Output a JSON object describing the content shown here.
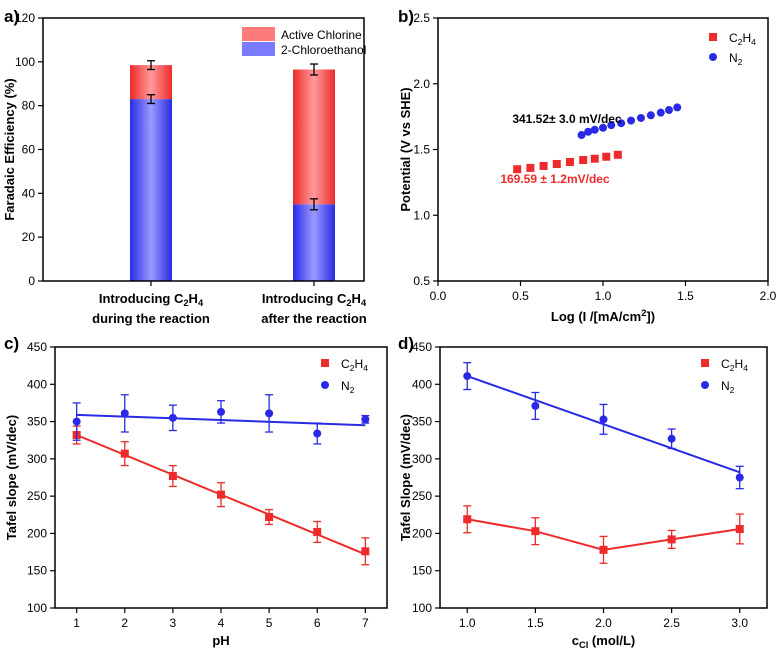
{
  "colors": {
    "red": "#ee2a2a",
    "blue": "#2a2ae6"
  },
  "chart_data": [
    {
      "panel": "a)",
      "type": "bar",
      "stacked": true,
      "ylabel": "Faradaic Efficiency (%)",
      "ylim": [
        0,
        120
      ],
      "yticks": [
        0,
        20,
        40,
        60,
        80,
        100,
        120
      ],
      "categories": [
        {
          "line1": "Introducing C",
          "sub": "2",
          "mid": "H",
          "sub2": "4",
          "line2": "during the reaction"
        },
        {
          "line1": "Introducing C",
          "sub": "2",
          "mid": "H",
          "sub2": "4",
          "line2": "after the reaction"
        }
      ],
      "series": [
        {
          "name": "2-Chloroethanol",
          "values": [
            83,
            35
          ],
          "errors": [
            2,
            2.5
          ]
        },
        {
          "name": "Active Chlorine",
          "values": [
            15.5,
            61.5
          ],
          "errors": [
            2,
            2.5
          ]
        }
      ]
    },
    {
      "panel": "b)",
      "type": "scatter",
      "xlabel_pre": "Log (I /[mA/cm",
      "xlabel_sup": "2",
      "xlabel_post": "])",
      "ylabel": "Potential (V vs SHE)",
      "xlim": [
        0.0,
        2.0
      ],
      "ylim": [
        0.5,
        2.5
      ],
      "xticks": [
        "0.0",
        "0.5",
        "1.0",
        "1.5",
        "2.0"
      ],
      "yticks": [
        "0.5",
        "1.0",
        "1.5",
        "2.0",
        "2.5"
      ],
      "legend": [
        {
          "pre": "C",
          "sub": "2",
          "mid": "H",
          "sub2": "4",
          "marker": "square"
        },
        {
          "pre": "N",
          "sub": "2",
          "mid": "",
          "sub2": "",
          "marker": "circle"
        }
      ],
      "annotations": [
        "341.52± 3.0 mV/dec",
        "169.59 ± 1.2mV/dec"
      ],
      "series": [
        {
          "name": "C2H4",
          "x": [
            0.48,
            0.56,
            0.64,
            0.72,
            0.8,
            0.88,
            0.95,
            1.02,
            1.09
          ],
          "y": [
            1.35,
            1.36,
            1.375,
            1.39,
            1.405,
            1.42,
            1.43,
            1.445,
            1.46
          ]
        },
        {
          "name": "N2",
          "x": [
            0.87,
            0.91,
            0.95,
            1.0,
            1.05,
            1.11,
            1.17,
            1.23,
            1.29,
            1.35,
            1.4,
            1.45
          ],
          "y": [
            1.61,
            1.635,
            1.65,
            1.665,
            1.685,
            1.7,
            1.72,
            1.74,
            1.76,
            1.78,
            1.8,
            1.82
          ]
        }
      ]
    },
    {
      "panel": "c)",
      "type": "line",
      "xlabel": "pH",
      "ylabel": "Tafel slope (mV/dec)",
      "xlim": [
        0.55,
        7.45
      ],
      "ylim": [
        100,
        450
      ],
      "xticks": [
        1,
        2,
        3,
        4,
        5,
        6,
        7
      ],
      "yticks": [
        100,
        150,
        200,
        250,
        300,
        350,
        400,
        450
      ],
      "legend": [
        {
          "pre": "C",
          "sub": "2",
          "mid": "H",
          "sub2": "4",
          "marker": "square"
        },
        {
          "pre": "N",
          "sub": "2",
          "mid": "",
          "sub2": "",
          "marker": "circle"
        }
      ],
      "series": [
        {
          "name": "C2H4",
          "x": [
            1,
            2,
            3,
            4,
            5,
            6,
            7
          ],
          "y": [
            332,
            307,
            277,
            252,
            222,
            202,
            176
          ],
          "errors": [
            12,
            16,
            14,
            16,
            10,
            14,
            18
          ],
          "fit": [
            [
              1,
              332
            ],
            [
              7,
              172
            ]
          ]
        },
        {
          "name": "N2",
          "x": [
            1,
            2,
            3,
            4,
            5,
            6,
            7
          ],
          "y": [
            350,
            361,
            355,
            363,
            361,
            334,
            353
          ],
          "errors": [
            25,
            25,
            17,
            15,
            25,
            14,
            5
          ],
          "fit": [
            [
              1,
              359
            ],
            [
              7,
              345
            ]
          ]
        }
      ]
    },
    {
      "panel": "d)",
      "type": "line",
      "xlabel_pre": "c",
      "xlabel_sub": "Cl",
      "xlabel_post": " (mol/L)",
      "ylabel": "Tafel Slope (mV/dec)",
      "xlim": [
        0.8,
        3.2
      ],
      "ylim": [
        100,
        450
      ],
      "xticks": [
        "1.0",
        "1.5",
        "2.0",
        "2.5",
        "3.0"
      ],
      "yticks": [
        100,
        150,
        200,
        250,
        300,
        350,
        400,
        450
      ],
      "legend": [
        {
          "pre": "C",
          "sub": "2",
          "mid": "H",
          "sub2": "4",
          "marker": "square"
        },
        {
          "pre": "N",
          "sub": "2",
          "mid": "",
          "sub2": "",
          "marker": "circle"
        }
      ],
      "series": [
        {
          "name": "C2H4",
          "x": [
            1.0,
            1.5,
            2.0,
            2.5,
            3.0
          ],
          "y": [
            219,
            203,
            178,
            192,
            206
          ],
          "errors": [
            18,
            18,
            18,
            12,
            20
          ],
          "fit": [
            [
              1.0,
              219
            ],
            [
              1.5,
              203
            ],
            [
              2.0,
              178
            ],
            [
              2.5,
              192
            ],
            [
              3.0,
              206
            ]
          ]
        },
        {
          "name": "N2",
          "x": [
            1.0,
            1.5,
            2.0,
            2.5,
            3.0
          ],
          "y": [
            411,
            371,
            353,
            327,
            275
          ],
          "errors": [
            18,
            18,
            20,
            13,
            15
          ],
          "fit": [
            [
              1.0,
              411
            ],
            [
              3.0,
              282
            ]
          ]
        }
      ]
    }
  ]
}
